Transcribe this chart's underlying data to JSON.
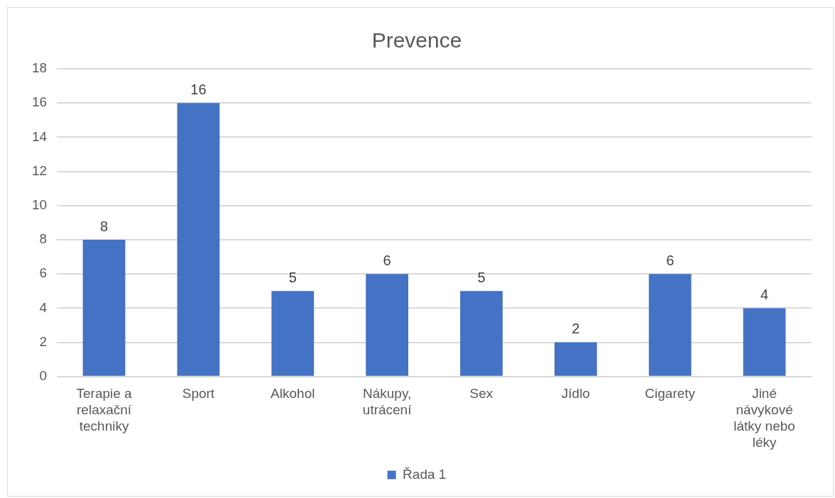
{
  "chart_data": {
    "type": "bar",
    "title": "Prevence",
    "categories": [
      "Terapie a relaxační techniky",
      "Sport",
      "Alkohol",
      "Nákupy, utrácení",
      "Sex",
      "Jídlo",
      "Cigarety",
      "Jiné návykové látky nebo léky"
    ],
    "series": [
      {
        "name": "Řada 1",
        "color": "#4472c4",
        "values": [
          8,
          16,
          5,
          6,
          5,
          2,
          6,
          4
        ]
      }
    ],
    "ylim": [
      0,
      18
    ],
    "yticks": [
      0,
      2,
      4,
      6,
      8,
      10,
      12,
      14,
      16,
      18
    ],
    "grid": "y",
    "legend": "bottom",
    "data_labels": true
  }
}
